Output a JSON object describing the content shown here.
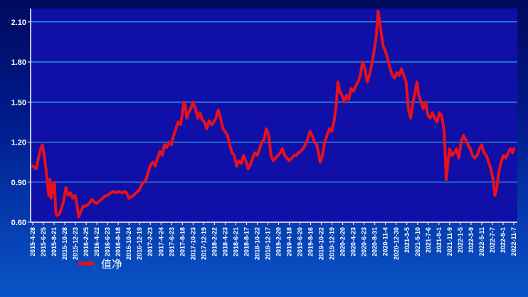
{
  "colors": {
    "plot_bg": "#1010a8",
    "grid": "#2fd2f0",
    "axis": "#ffffff",
    "series": "#e8101a"
  },
  "chart_data": {
    "type": "line",
    "title": "",
    "xlabel": "",
    "ylabel": "",
    "ylim": [
      0.6,
      2.2
    ],
    "yticks": [
      "0.60",
      "0.90",
      "1.20",
      "1.50",
      "1.80",
      "2.10"
    ],
    "xticks": [
      "2015-4-28",
      "2015-6-25",
      "2015-8-21",
      "2015-10-28",
      "2015-12-23",
      "2016-2-25",
      "2016-4-22",
      "2016-6-23",
      "2016-8-18",
      "2016-10-24",
      "2016-12-19",
      "2017-2-23",
      "2017-4-24",
      "2017-6-23",
      "2017-8-18",
      "2017-10-23",
      "2017-12-19",
      "2018-2-22",
      "2018-4-23",
      "2018-6-21",
      "2018-8-17",
      "2018-10-22",
      "2018-12-17",
      "2019-2-20",
      "2019-4-18",
      "2019-6-20",
      "2019-8-16",
      "2019-10-22",
      "2019-12-19",
      "2020-2-20",
      "2020-4-23",
      "2020-6-23",
      "2020-8-31",
      "2020-11-4",
      "2020-12-30",
      "2021-3-5",
      "2021-5-10",
      "2021-7-6",
      "2021-9-1",
      "2021-11-9",
      "2022-1-5",
      "2022-3-9",
      "2022-5-11",
      "2022-7-7",
      "2022-9-1",
      "2022-11-7"
    ],
    "legend": {
      "position": "bottom-left",
      "entries": [
        "值净"
      ]
    },
    "series": [
      {
        "name": "值净",
        "points": [
          [
            0,
            1.02
          ],
          [
            0.3,
            1.0
          ],
          [
            0.5,
            1.08
          ],
          [
            0.7,
            1.15
          ],
          [
            0.85,
            1.18
          ],
          [
            1.0,
            1.1
          ],
          [
            1.15,
            1.0
          ],
          [
            1.3,
            0.88
          ],
          [
            1.4,
            0.8
          ],
          [
            1.5,
            0.92
          ],
          [
            1.6,
            0.78
          ],
          [
            1.7,
            0.88
          ],
          [
            1.8,
            0.82
          ],
          [
            1.9,
            0.9
          ],
          [
            2.0,
            0.68
          ],
          [
            2.1,
            0.65
          ],
          [
            2.3,
            0.66
          ],
          [
            2.5,
            0.7
          ],
          [
            2.7,
            0.76
          ],
          [
            2.9,
            0.86
          ],
          [
            3.0,
            0.83
          ],
          [
            3.1,
            0.8
          ],
          [
            3.3,
            0.82
          ],
          [
            3.5,
            0.78
          ],
          [
            3.7,
            0.8
          ],
          [
            3.85,
            0.74
          ],
          [
            4.0,
            0.64
          ],
          [
            4.2,
            0.68
          ],
          [
            4.4,
            0.72
          ],
          [
            4.6,
            0.72
          ],
          [
            4.8,
            0.73
          ],
          [
            5.0,
            0.75
          ],
          [
            5.2,
            0.77
          ],
          [
            5.4,
            0.75
          ],
          [
            5.6,
            0.74
          ],
          [
            5.8,
            0.76
          ],
          [
            6.0,
            0.77
          ],
          [
            6.2,
            0.79
          ],
          [
            6.5,
            0.8
          ],
          [
            6.8,
            0.82
          ],
          [
            7.0,
            0.83
          ],
          [
            7.2,
            0.82
          ],
          [
            7.5,
            0.83
          ],
          [
            7.8,
            0.82
          ],
          [
            8.0,
            0.83
          ],
          [
            8.2,
            0.82
          ],
          [
            8.4,
            0.78
          ],
          [
            8.6,
            0.79
          ],
          [
            8.8,
            0.8
          ],
          [
            9.0,
            0.82
          ],
          [
            9.3,
            0.84
          ],
          [
            9.5,
            0.88
          ],
          [
            9.7,
            0.9
          ],
          [
            9.9,
            0.92
          ],
          [
            10.1,
            0.98
          ],
          [
            10.3,
            1.03
          ],
          [
            10.5,
            1.05
          ],
          [
            10.7,
            1.02
          ],
          [
            10.9,
            1.08
          ],
          [
            11.1,
            1.13
          ],
          [
            11.3,
            1.1
          ],
          [
            11.5,
            1.18
          ],
          [
            11.7,
            1.16
          ],
          [
            11.9,
            1.2
          ],
          [
            12.1,
            1.18
          ],
          [
            12.3,
            1.25
          ],
          [
            12.5,
            1.3
          ],
          [
            12.7,
            1.35
          ],
          [
            12.9,
            1.33
          ],
          [
            13.05,
            1.4
          ],
          [
            13.2,
            1.5
          ],
          [
            13.3,
            1.48
          ],
          [
            13.45,
            1.38
          ],
          [
            13.6,
            1.42
          ],
          [
            13.8,
            1.45
          ],
          [
            14.0,
            1.5
          ],
          [
            14.2,
            1.45
          ],
          [
            14.4,
            1.38
          ],
          [
            14.6,
            1.42
          ],
          [
            14.8,
            1.37
          ],
          [
            15.0,
            1.35
          ],
          [
            15.2,
            1.3
          ],
          [
            15.4,
            1.36
          ],
          [
            15.6,
            1.33
          ],
          [
            15.8,
            1.35
          ],
          [
            16.0,
            1.38
          ],
          [
            16.2,
            1.44
          ],
          [
            16.4,
            1.38
          ],
          [
            16.6,
            1.3
          ],
          [
            16.8,
            1.28
          ],
          [
            17.0,
            1.25
          ],
          [
            17.2,
            1.18
          ],
          [
            17.4,
            1.12
          ],
          [
            17.6,
            1.1
          ],
          [
            17.8,
            1.02
          ],
          [
            18.0,
            1.06
          ],
          [
            18.2,
            1.04
          ],
          [
            18.4,
            1.1
          ],
          [
            18.6,
            1.06
          ],
          [
            18.8,
            1.0
          ],
          [
            19.0,
            1.03
          ],
          [
            19.2,
            1.08
          ],
          [
            19.4,
            1.12
          ],
          [
            19.6,
            1.1
          ],
          [
            19.8,
            1.15
          ],
          [
            20.0,
            1.2
          ],
          [
            20.2,
            1.22
          ],
          [
            20.4,
            1.3
          ],
          [
            20.6,
            1.25
          ],
          [
            20.8,
            1.1
          ],
          [
            21.0,
            1.06
          ],
          [
            21.2,
            1.08
          ],
          [
            21.4,
            1.1
          ],
          [
            21.6,
            1.12
          ],
          [
            21.8,
            1.15
          ],
          [
            22.0,
            1.1
          ],
          [
            22.2,
            1.08
          ],
          [
            22.4,
            1.06
          ],
          [
            22.6,
            1.08
          ],
          [
            22.8,
            1.1
          ],
          [
            23.0,
            1.1
          ],
          [
            23.2,
            1.12
          ],
          [
            23.4,
            1.13
          ],
          [
            23.6,
            1.15
          ],
          [
            23.8,
            1.18
          ],
          [
            24.0,
            1.22
          ],
          [
            24.2,
            1.28
          ],
          [
            24.4,
            1.25
          ],
          [
            24.6,
            1.2
          ],
          [
            24.8,
            1.18
          ],
          [
            25.0,
            1.1
          ],
          [
            25.1,
            1.05
          ],
          [
            25.3,
            1.1
          ],
          [
            25.5,
            1.2
          ],
          [
            25.7,
            1.25
          ],
          [
            25.9,
            1.3
          ],
          [
            26.1,
            1.28
          ],
          [
            26.3,
            1.35
          ],
          [
            26.5,
            1.48
          ],
          [
            26.65,
            1.65
          ],
          [
            26.8,
            1.58
          ],
          [
            27.0,
            1.55
          ],
          [
            27.2,
            1.5
          ],
          [
            27.4,
            1.55
          ],
          [
            27.6,
            1.52
          ],
          [
            27.8,
            1.6
          ],
          [
            28.0,
            1.58
          ],
          [
            28.2,
            1.62
          ],
          [
            28.4,
            1.65
          ],
          [
            28.6,
            1.7
          ],
          [
            28.8,
            1.8
          ],
          [
            29.0,
            1.75
          ],
          [
            29.2,
            1.65
          ],
          [
            29.4,
            1.7
          ],
          [
            29.6,
            1.78
          ],
          [
            29.8,
            1.88
          ],
          [
            30.0,
            2.0
          ],
          [
            30.15,
            2.18
          ],
          [
            30.3,
            2.1
          ],
          [
            30.45,
            2.0
          ],
          [
            30.6,
            1.92
          ],
          [
            30.8,
            1.88
          ],
          [
            31.0,
            1.82
          ],
          [
            31.2,
            1.75
          ],
          [
            31.4,
            1.7
          ],
          [
            31.6,
            1.68
          ],
          [
            31.8,
            1.72
          ],
          [
            32.0,
            1.7
          ],
          [
            32.2,
            1.75
          ],
          [
            32.4,
            1.7
          ],
          [
            32.6,
            1.65
          ],
          [
            32.8,
            1.45
          ],
          [
            33.0,
            1.38
          ],
          [
            33.2,
            1.5
          ],
          [
            33.4,
            1.58
          ],
          [
            33.55,
            1.65
          ],
          [
            33.7,
            1.55
          ],
          [
            33.9,
            1.5
          ],
          [
            34.1,
            1.45
          ],
          [
            34.3,
            1.5
          ],
          [
            34.5,
            1.4
          ],
          [
            34.7,
            1.38
          ],
          [
            34.9,
            1.42
          ],
          [
            35.1,
            1.38
          ],
          [
            35.3,
            1.35
          ],
          [
            35.5,
            1.42
          ],
          [
            35.7,
            1.4
          ],
          [
            35.9,
            1.3
          ],
          [
            36.0,
            1.15
          ],
          [
            36.1,
            0.92
          ],
          [
            36.25,
            1.05
          ],
          [
            36.4,
            1.15
          ],
          [
            36.6,
            1.1
          ],
          [
            36.8,
            1.12
          ],
          [
            37.0,
            1.15
          ],
          [
            37.2,
            1.08
          ],
          [
            37.4,
            1.2
          ],
          [
            37.6,
            1.25
          ],
          [
            37.8,
            1.22
          ],
          [
            38.0,
            1.18
          ],
          [
            38.2,
            1.15
          ],
          [
            38.4,
            1.1
          ],
          [
            38.6,
            1.08
          ],
          [
            38.8,
            1.1
          ],
          [
            39.0,
            1.15
          ],
          [
            39.2,
            1.18
          ],
          [
            39.4,
            1.12
          ],
          [
            39.6,
            1.1
          ],
          [
            39.8,
            1.05
          ],
          [
            40.0,
            1.0
          ],
          [
            40.2,
            0.92
          ],
          [
            40.35,
            0.8
          ],
          [
            40.5,
            0.85
          ],
          [
            40.7,
            0.98
          ],
          [
            40.9,
            1.05
          ],
          [
            41.1,
            1.1
          ],
          [
            41.3,
            1.08
          ],
          [
            41.5,
            1.12
          ],
          [
            41.7,
            1.15
          ],
          [
            41.9,
            1.12
          ],
          [
            42.0,
            1.15
          ]
        ]
      }
    ]
  }
}
